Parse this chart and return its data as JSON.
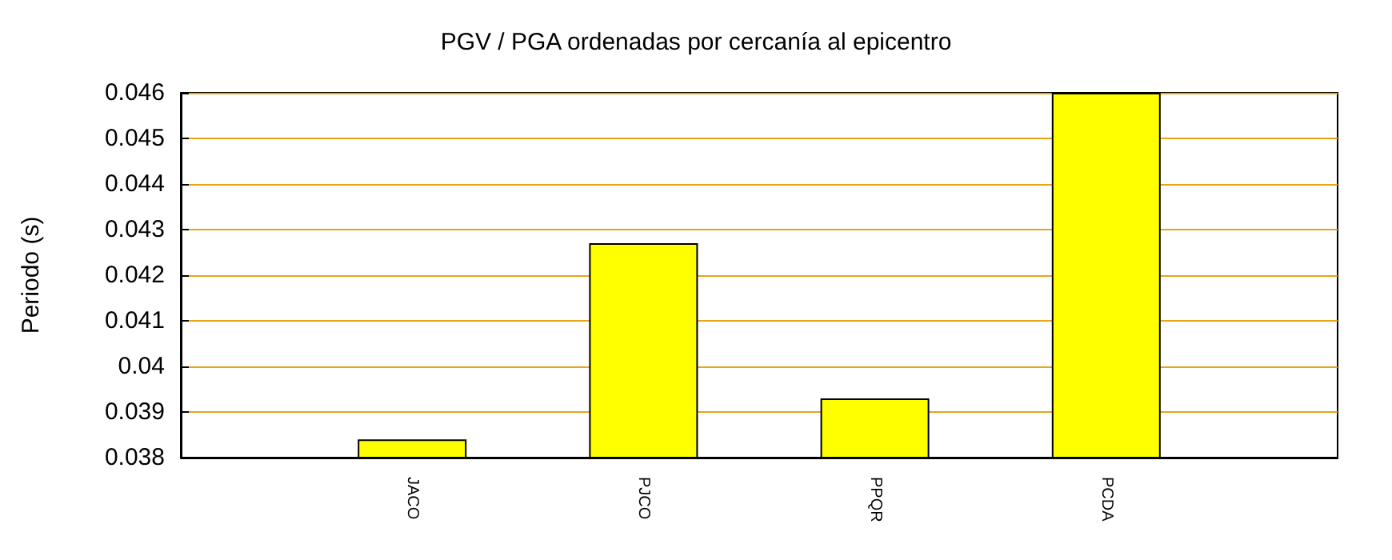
{
  "chart_data": {
    "type": "bar",
    "title": "PGV / PGA ordenadas por cercanía al epicentro",
    "ylabel": "Periodo (s)",
    "categories": [
      "JACO",
      "PJCO",
      "PPQR",
      "PCDA"
    ],
    "values": [
      0.0384,
      0.0427,
      0.0393,
      0.046
    ],
    "color": "#ffff00",
    "ylim": [
      0.038,
      0.046
    ],
    "yticks": [
      0.038,
      0.039,
      0.04,
      0.041,
      0.042,
      0.043,
      0.044,
      0.045,
      0.046
    ],
    "grid": "y"
  }
}
